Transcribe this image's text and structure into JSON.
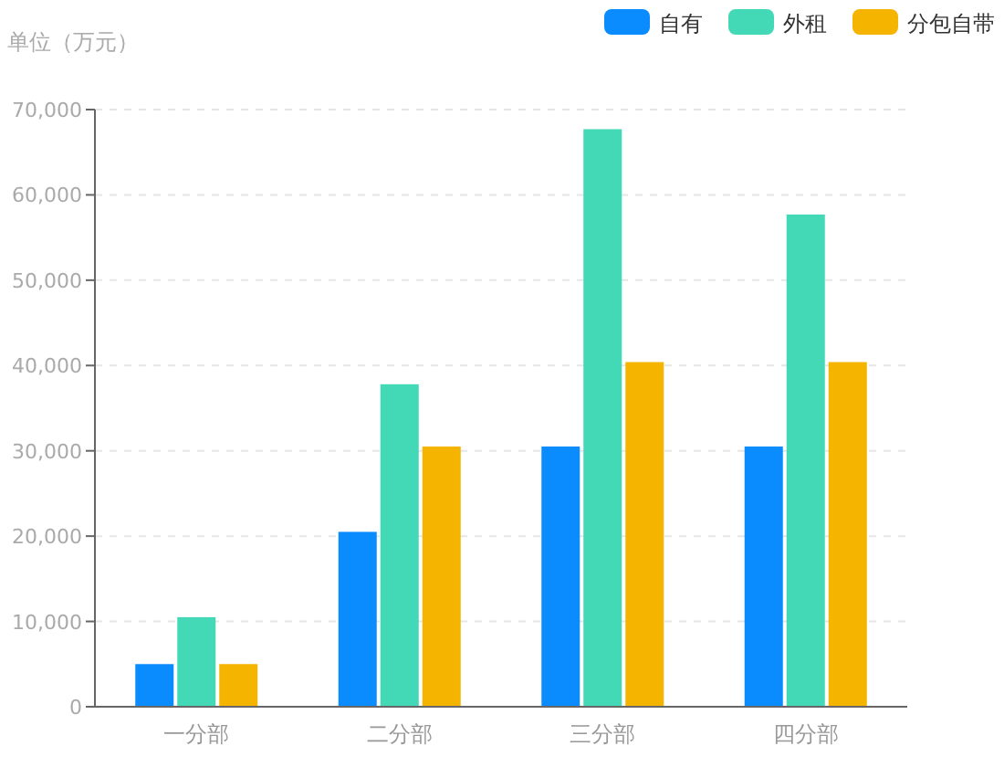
{
  "chart_data": {
    "type": "bar",
    "ylabel": "单位（万元）",
    "categories": [
      "一分部",
      "二分部",
      "三分部",
      "四分部"
    ],
    "series": [
      {
        "name": "自有",
        "color": "#0a8cff",
        "values": [
          5000,
          20500,
          30500,
          30500
        ]
      },
      {
        "name": "外租",
        "color": "#43d8b6",
        "values": [
          10500,
          37800,
          67700,
          57700
        ]
      },
      {
        "name": "分包自带",
        "color": "#f5b400",
        "values": [
          5000,
          30500,
          40400,
          40400
        ]
      }
    ],
    "ylim": [
      0,
      70000
    ],
    "yticks": [
      {
        "value": 0,
        "label": "0"
      },
      {
        "value": 10000,
        "label": "10,000"
      },
      {
        "value": 20000,
        "label": "20,000"
      },
      {
        "value": 30000,
        "label": "30,000"
      },
      {
        "value": 40000,
        "label": "40,000"
      },
      {
        "value": 50000,
        "label": "50,000"
      },
      {
        "value": 60000,
        "label": "60,000"
      },
      {
        "value": 70000,
        "label": "70,000"
      }
    ],
    "grid": "y",
    "legend": "top right"
  }
}
